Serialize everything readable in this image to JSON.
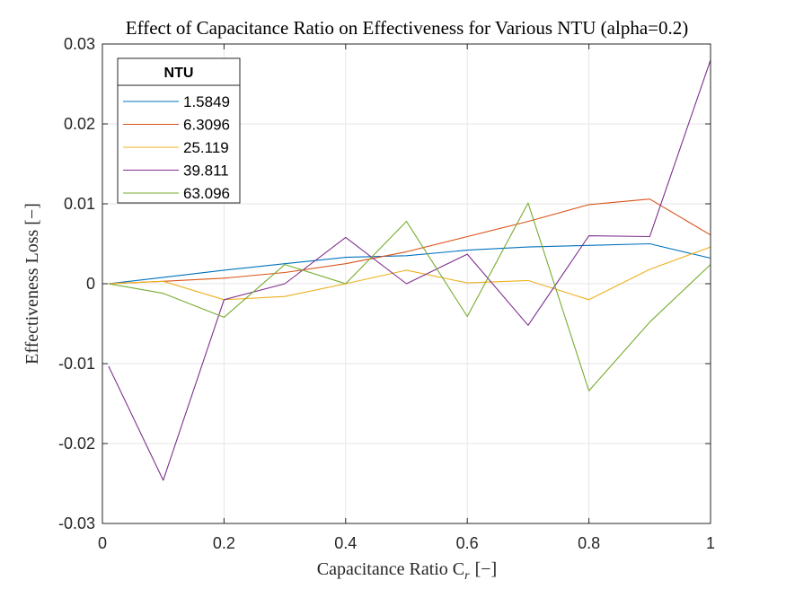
{
  "chart_data": {
    "type": "line",
    "title": "Effect of Capacitance Ratio on Effectiveness for Various NTU (alpha=0.2)",
    "xlabel_main": "Capacitance Ratio C",
    "xlabel_sub": "r",
    "xlabel_unit": "[−]",
    "ylabel": "Effectiveness Loss [−]",
    "xlim": [
      0,
      1
    ],
    "ylim": [
      -0.03,
      0.03
    ],
    "xticks": [
      0,
      0.2,
      0.4,
      0.6,
      0.8,
      1
    ],
    "xtick_labels": [
      "0",
      "0.2",
      "0.4",
      "0.6",
      "0.8",
      "1"
    ],
    "yticks": [
      -0.03,
      -0.02,
      -0.01,
      0,
      0.01,
      0.02,
      0.03
    ],
    "ytick_labels": [
      "-0.03",
      "-0.02",
      "-0.01",
      "0",
      "0.01",
      "0.02",
      "0.03"
    ],
    "grid": true,
    "legend_title": "NTU",
    "legend_position": "top-left",
    "series": [
      {
        "name": "1.5849",
        "color": "#0072BD",
        "x": [
          0.01,
          0.1,
          0.2,
          0.3,
          0.4,
          0.5,
          0.6,
          0.7,
          0.8,
          0.9,
          1.0
        ],
        "y": [
          0,
          0.0008,
          0.0017,
          0.0025,
          0.0033,
          0.0035,
          0.0042,
          0.0046,
          0.0048,
          0.005,
          0.0032
        ]
      },
      {
        "name": "6.3096",
        "color": "#D95319",
        "x": [
          0.01,
          0.1,
          0.2,
          0.3,
          0.4,
          0.5,
          0.6,
          0.7,
          0.8,
          0.9,
          1.0
        ],
        "y": [
          0,
          0.0003,
          0.0007,
          0.0014,
          0.0025,
          0.004,
          0.0059,
          0.0078,
          0.0099,
          0.0106,
          0.0061
        ]
      },
      {
        "name": "25.119",
        "color": "#EDB120",
        "x": [
          0.01,
          0.1,
          0.2,
          0.3,
          0.4,
          0.5,
          0.6,
          0.7,
          0.8,
          0.9,
          1.0
        ],
        "y": [
          0,
          0.0003,
          -0.002,
          -0.0016,
          0,
          0.0017,
          0.0001,
          0.0004,
          -0.002,
          0.0018,
          0.0046
        ]
      },
      {
        "name": "39.811",
        "color": "#7E2F8E",
        "x": [
          0.01,
          0.1,
          0.2,
          0.3,
          0.4,
          0.5,
          0.6,
          0.7,
          0.8,
          0.9,
          1.0
        ],
        "y": [
          -0.0103,
          -0.0246,
          -0.002,
          0,
          0.0058,
          0,
          0.0037,
          -0.0052,
          0.006,
          0.0059,
          0.028
        ]
      },
      {
        "name": "63.096",
        "color": "#77AC30",
        "x": [
          0.01,
          0.1,
          0.2,
          0.3,
          0.4,
          0.5,
          0.6,
          0.7,
          0.8,
          0.9,
          1.0
        ],
        "y": [
          0,
          -0.0012,
          -0.0042,
          0.0024,
          0,
          0.0078,
          -0.0041,
          0.0101,
          -0.0134,
          -0.0048,
          0.0024
        ]
      }
    ]
  }
}
